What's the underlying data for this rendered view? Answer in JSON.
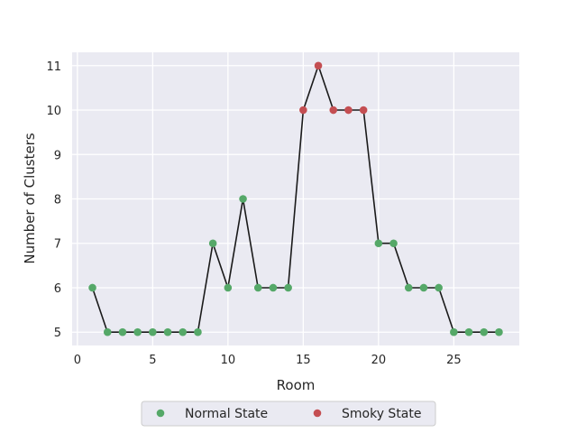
{
  "chart_data": {
    "type": "line",
    "title": "",
    "xlabel": "Room",
    "ylabel": "Number of Clusters",
    "xlim": [
      -0.35,
      29.35
    ],
    "ylim": [
      4.7,
      11.3
    ],
    "xticks": [
      0,
      5,
      10,
      15,
      20,
      25
    ],
    "yticks": [
      5,
      6,
      7,
      8,
      9,
      10,
      11
    ],
    "grid": true,
    "legend_position": "bottom-center",
    "line_color": "#1a1a1a",
    "x": [
      1,
      2,
      3,
      4,
      5,
      6,
      7,
      8,
      9,
      10,
      11,
      12,
      13,
      14,
      15,
      16,
      17,
      18,
      19,
      20,
      21,
      22,
      23,
      24,
      25,
      26,
      27,
      28
    ],
    "y": [
      6,
      5,
      5,
      5,
      5,
      5,
      5,
      5,
      7,
      6,
      8,
      6,
      6,
      6,
      10,
      11,
      10,
      10,
      10,
      7,
      7,
      6,
      6,
      6,
      5,
      5,
      5,
      5
    ],
    "series": [
      {
        "name": "Normal State",
        "color": "#55a868",
        "x": [
          1,
          2,
          3,
          4,
          5,
          6,
          7,
          8,
          9,
          10,
          11,
          12,
          13,
          14,
          20,
          21,
          22,
          23,
          24,
          25,
          26,
          27,
          28
        ],
        "y": [
          6,
          5,
          5,
          5,
          5,
          5,
          5,
          5,
          7,
          6,
          8,
          6,
          6,
          6,
          7,
          7,
          6,
          6,
          6,
          5,
          5,
          5,
          5
        ]
      },
      {
        "name": "Smoky State",
        "color": "#c44e52",
        "x": [
          15,
          16,
          17,
          18,
          19
        ],
        "y": [
          10,
          11,
          10,
          10,
          10
        ]
      }
    ]
  }
}
